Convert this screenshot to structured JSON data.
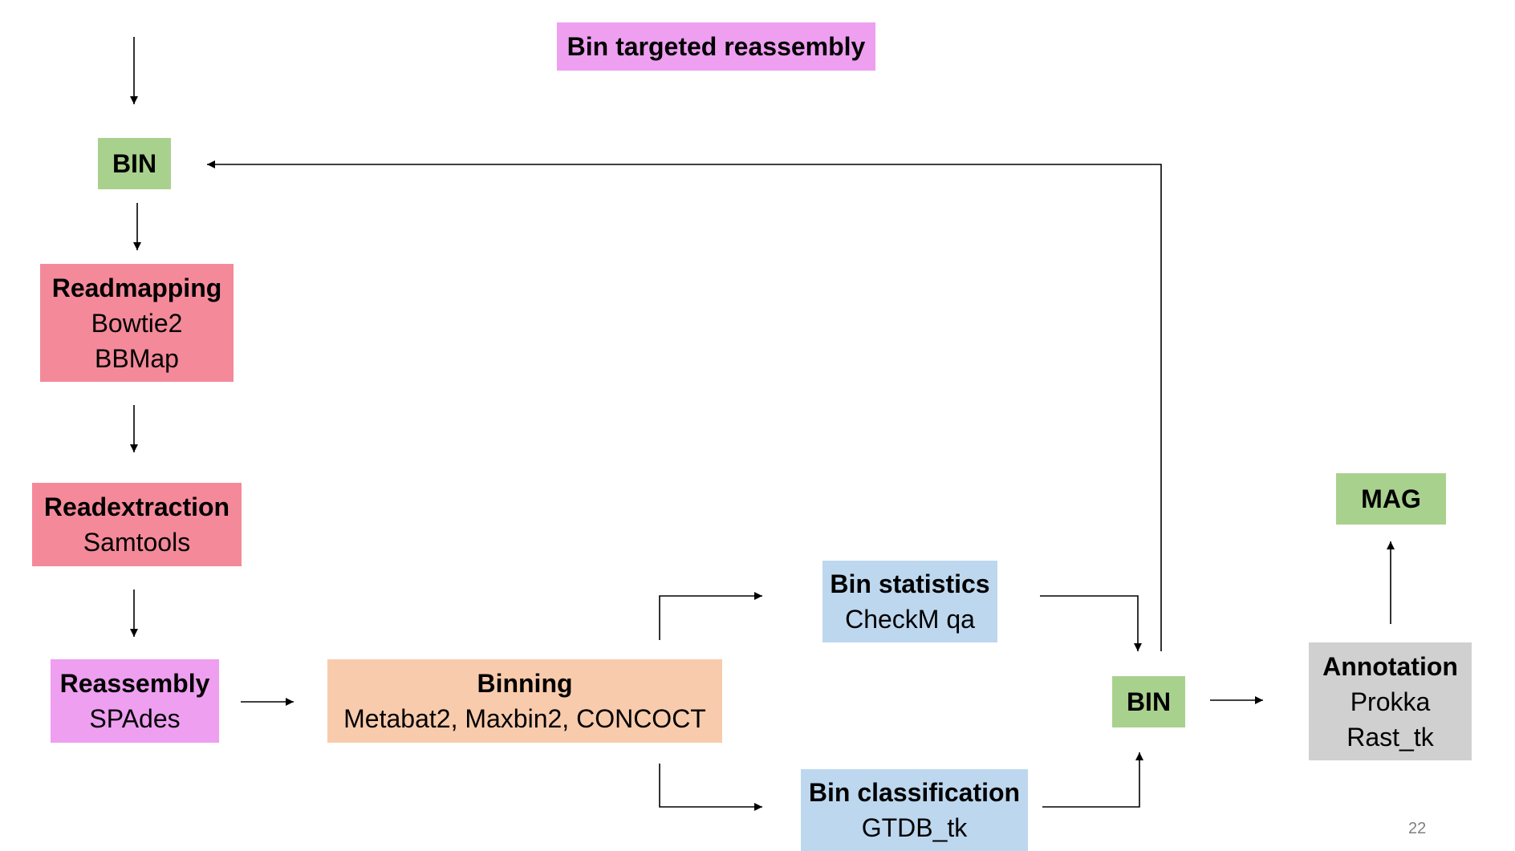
{
  "colors": {
    "green": "#a9d18e",
    "pink": "#f4899a",
    "violet": "#ee9ff0",
    "peach": "#f8cbad",
    "blue": "#bdd7ee",
    "gray": "#d0d0d0",
    "line": "#000000"
  },
  "slide": {
    "title": "Bin targeted reassembly",
    "page_number": "22"
  },
  "nodes": {
    "bin_top": {
      "title": "BIN"
    },
    "readmapping": {
      "title": "Readmapping",
      "lines": [
        "Bowtie2",
        "BBMap"
      ]
    },
    "readextraction": {
      "title": "Readextraction",
      "lines": [
        "Samtools"
      ]
    },
    "reassembly": {
      "title": "Reassembly",
      "lines": [
        "SPAdes"
      ]
    },
    "binning": {
      "title": "Binning",
      "lines": [
        "Metabat2, Maxbin2, CONCOCT"
      ]
    },
    "bin_statistics": {
      "title": "Bin statistics",
      "lines": [
        "CheckM qa"
      ]
    },
    "bin_classification": {
      "title": "Bin classification",
      "lines": [
        "GTDB_tk"
      ]
    },
    "bin_right": {
      "title": "BIN"
    },
    "annotation": {
      "title": "Annotation",
      "lines": [
        "Prokka",
        "Rast_tk"
      ]
    },
    "mag": {
      "title": "MAG"
    }
  }
}
